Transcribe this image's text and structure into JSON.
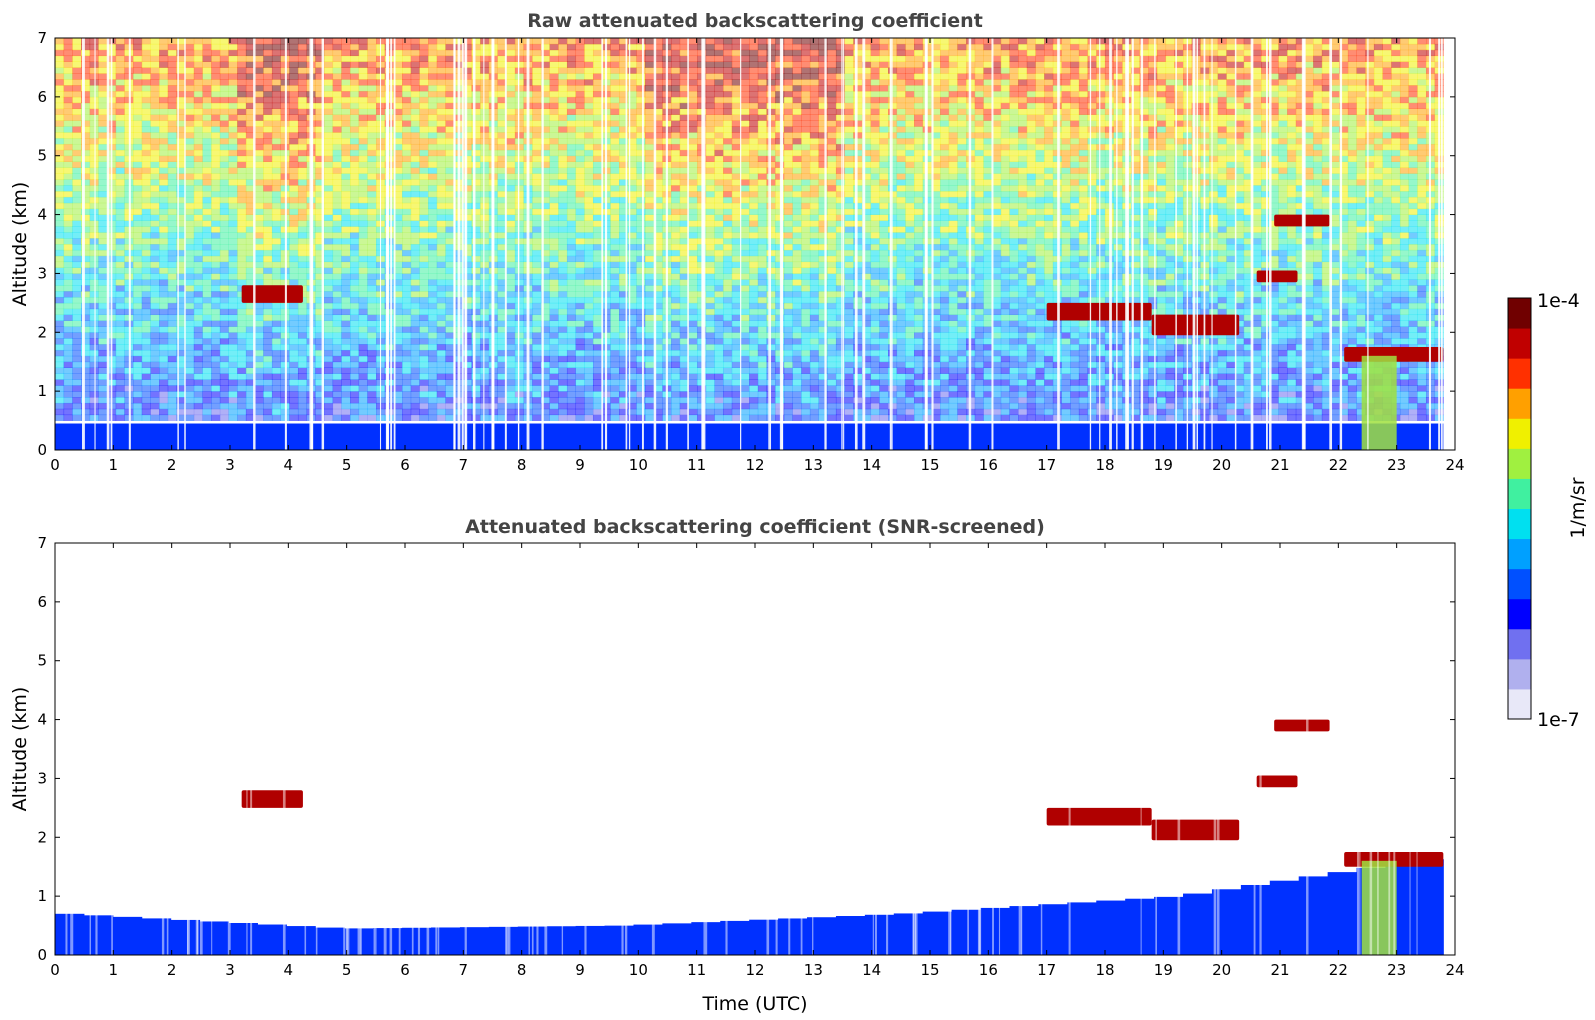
{
  "chart_data": [
    {
      "type": "heatmap",
      "title": "Raw attenuated backscattering coefficient",
      "ylabel": "Altitude (km)",
      "xlabel": "",
      "xlim": [
        0,
        24
      ],
      "ylim": [
        0,
        7
      ],
      "xticks": [
        "0",
        "1",
        "2",
        "3",
        "4",
        "5",
        "6",
        "7",
        "8",
        "9",
        "10",
        "11",
        "12",
        "13",
        "14",
        "15",
        "16",
        "17",
        "18",
        "19",
        "20",
        "21",
        "22",
        "23",
        "24"
      ],
      "yticks": [
        "0",
        "1",
        "2",
        "3",
        "4",
        "5",
        "6",
        "7"
      ],
      "features": [
        {
          "kind": "boundary_layer",
          "x": [
            0,
            23.8
          ],
          "top_km": 0.45
        },
        {
          "kind": "noise_background",
          "x": [
            0,
            23.8
          ],
          "y": [
            0.5,
            7
          ]
        },
        {
          "kind": "cloud_layer",
          "x": [
            3.2,
            4.25
          ],
          "y": [
            2.5,
            2.8
          ]
        },
        {
          "kind": "cloud_layer",
          "x": [
            17.0,
            18.8
          ],
          "y": [
            2.2,
            2.5
          ]
        },
        {
          "kind": "cloud_layer",
          "x": [
            18.8,
            20.3
          ],
          "y": [
            1.95,
            2.3
          ]
        },
        {
          "kind": "cloud_layer",
          "x": [
            20.6,
            21.3
          ],
          "y": [
            2.85,
            3.05
          ]
        },
        {
          "kind": "cloud_layer",
          "x": [
            20.9,
            21.85
          ],
          "y": [
            3.8,
            4.0
          ]
        },
        {
          "kind": "cloud_layer",
          "x": [
            22.1,
            23.8
          ],
          "y": [
            1.5,
            1.75
          ]
        },
        {
          "kind": "precipitation",
          "x": [
            22.4,
            23.0
          ],
          "y": [
            0,
            1.6
          ]
        }
      ]
    },
    {
      "type": "heatmap",
      "title": "Attenuated backscattering coefficient (SNR-screened)",
      "ylabel": "Altitude (km)",
      "xlabel": "Time (UTC)",
      "xlim": [
        0,
        24
      ],
      "ylim": [
        0,
        7
      ],
      "xticks": [
        "0",
        "1",
        "2",
        "3",
        "4",
        "5",
        "6",
        "7",
        "8",
        "9",
        "10",
        "11",
        "12",
        "13",
        "14",
        "15",
        "16",
        "17",
        "18",
        "19",
        "20",
        "21",
        "22",
        "23",
        "24"
      ],
      "yticks": [
        "0",
        "1",
        "2",
        "3",
        "4",
        "5",
        "6",
        "7"
      ],
      "features": [
        {
          "kind": "boundary_layer",
          "x": [
            0,
            23.8
          ],
          "top_km": [
            0.7,
            0.45,
            0.5,
            0.7,
            1.0,
            1.7
          ]
        },
        {
          "kind": "cloud_layer",
          "x": [
            3.2,
            4.25
          ],
          "y": [
            2.5,
            2.8
          ]
        },
        {
          "kind": "cloud_layer",
          "x": [
            17.0,
            18.8
          ],
          "y": [
            2.2,
            2.5
          ]
        },
        {
          "kind": "cloud_layer",
          "x": [
            18.8,
            20.3
          ],
          "y": [
            1.95,
            2.3
          ]
        },
        {
          "kind": "cloud_layer",
          "x": [
            20.6,
            21.3
          ],
          "y": [
            2.85,
            3.05
          ]
        },
        {
          "kind": "cloud_layer",
          "x": [
            20.9,
            21.85
          ],
          "y": [
            3.8,
            4.0
          ]
        },
        {
          "kind": "cloud_layer",
          "x": [
            22.1,
            23.8
          ],
          "y": [
            1.5,
            1.75
          ]
        },
        {
          "kind": "precipitation",
          "x": [
            22.4,
            23.0
          ],
          "y": [
            0,
            1.6
          ]
        }
      ]
    }
  ],
  "colorbar": {
    "label": "1/m/sr",
    "min_label": "1e-7",
    "max_label": "1e-4",
    "scale": "log",
    "colormap": [
      "#e8e8f8",
      "#b0b0ee",
      "#7070f0",
      "#0000ff",
      "#0050ff",
      "#00a0ff",
      "#00e0f0",
      "#40f0a0",
      "#a0f040",
      "#f0f000",
      "#ffa000",
      "#ff3000",
      "#c00000",
      "#700000"
    ]
  }
}
